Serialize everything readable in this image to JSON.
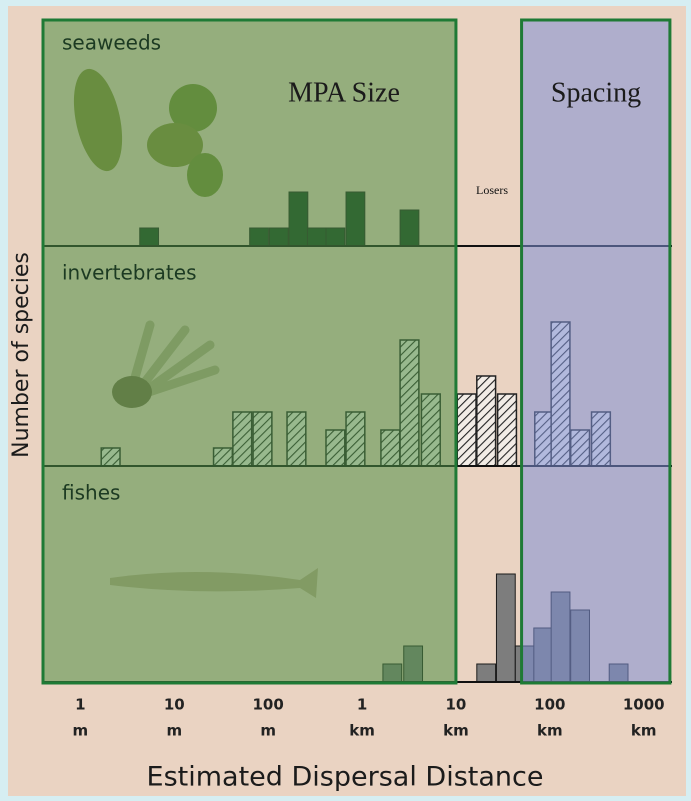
{
  "chart_data": {
    "type": "bar",
    "x_label": "Estimated Dispersal Distance",
    "y_label": "Number of species",
    "xscale": "log",
    "xlim": [
      0.4,
      2000000
    ],
    "xticks": [
      {
        "value": 1,
        "label": "1",
        "unit": "m"
      },
      {
        "value": 10,
        "label": "10",
        "unit": "m"
      },
      {
        "value": 100,
        "label": "100",
        "unit": "m"
      },
      {
        "value": 1000,
        "label": "1",
        "unit": "km"
      },
      {
        "value": 10000,
        "label": "10",
        "unit": "km"
      },
      {
        "value": 100000,
        "label": "100",
        "unit": "km"
      },
      {
        "value": 1000000,
        "label": "1000",
        "unit": "km"
      }
    ],
    "grid": false,
    "regions": [
      {
        "label": "MPA Size",
        "range": [
          0.4,
          10000
        ],
        "color": "#4f8f45"
      },
      {
        "label": "Spacing",
        "range": [
          50000,
          1900000
        ],
        "color": "#7e8fd6"
      }
    ],
    "annotations": [
      "Losers"
    ],
    "series": [
      {
        "name": "seaweeds",
        "color": "#123a1e",
        "hatch": false,
        "x": [
          5.4,
          80,
          130,
          210,
          330,
          520,
          850,
          3200
        ],
        "values": [
          1,
          1,
          1,
          3,
          1,
          1,
          3,
          2
        ]
      },
      {
        "name": "invertebrates",
        "color": "#222222",
        "hatch": true,
        "x": [
          2.1,
          33,
          53,
          87,
          200,
          520,
          850,
          2000,
          3200,
          5400,
          13000,
          21000,
          35000,
          87000,
          130000,
          210000,
          350000
        ],
        "values": [
          1,
          1,
          3,
          3,
          3,
          2,
          3,
          2,
          7,
          4,
          4,
          5,
          4,
          3,
          8,
          2,
          3
        ]
      },
      {
        "name": "fishes",
        "color": "#7d7d7d",
        "hatch": false,
        "x": [
          2100,
          3500,
          21000,
          34000,
          54000,
          85000,
          130000,
          210000,
          540000
        ],
        "values": [
          1,
          2,
          1,
          6,
          2,
          3,
          5,
          4,
          1
        ]
      }
    ]
  }
}
